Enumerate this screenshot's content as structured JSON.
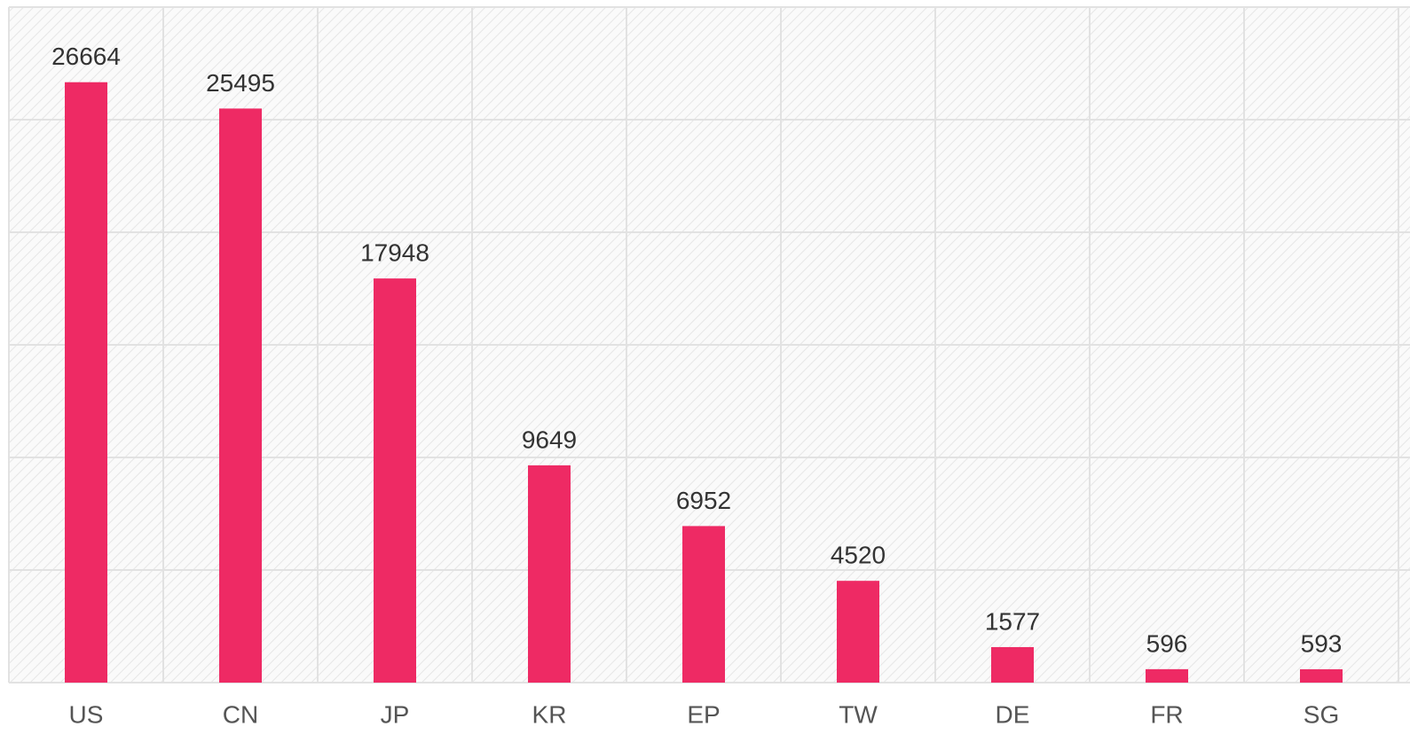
{
  "chart_data": {
    "type": "bar",
    "categories": [
      "US",
      "CN",
      "JP",
      "KR",
      "EP",
      "TW",
      "DE",
      "FR",
      "SG"
    ],
    "values": [
      26664,
      25495,
      17948,
      9649,
      6952,
      4520,
      1577,
      596,
      593
    ],
    "color": "#ee2a64",
    "ylim": [
      0,
      30000
    ],
    "yticks": [
      0,
      5000,
      10000,
      15000,
      20000,
      25000,
      30000
    ],
    "grid": true
  }
}
